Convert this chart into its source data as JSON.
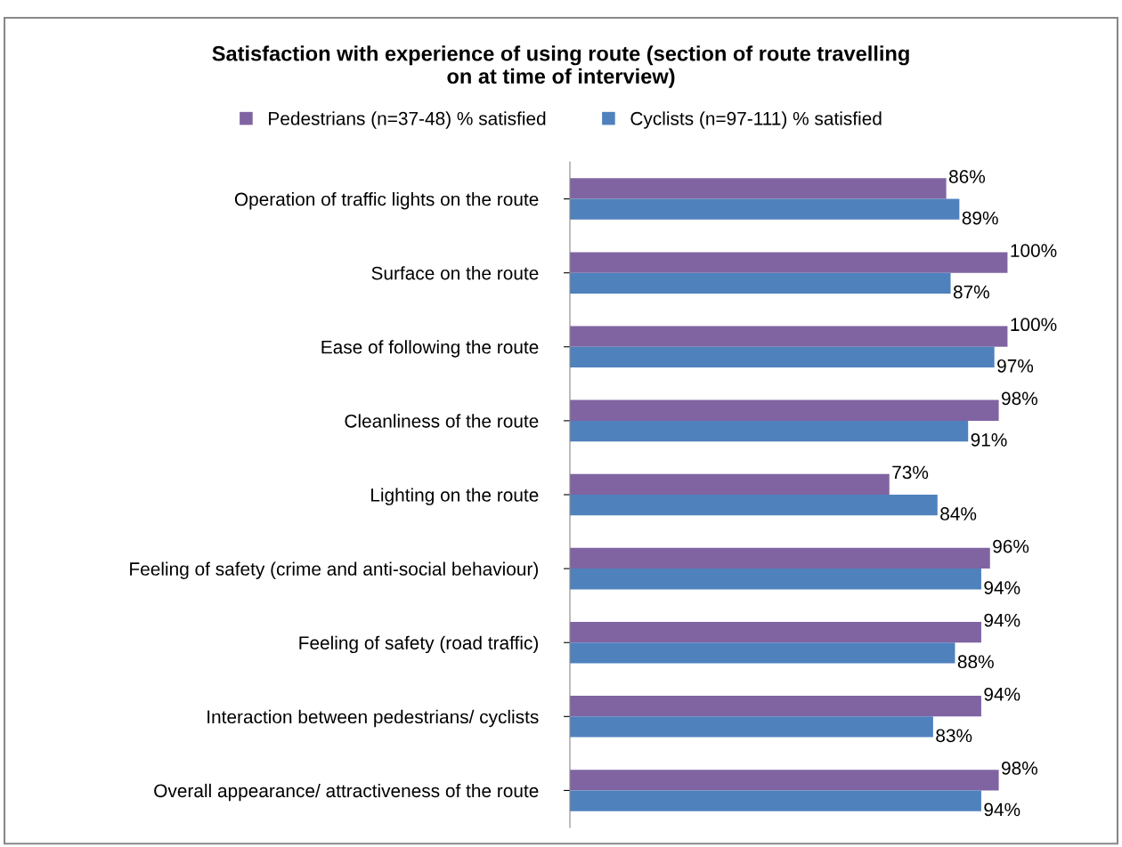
{
  "chart_data": {
    "type": "bar",
    "orientation": "horizontal",
    "title": "Satisfaction with experience of using route (section of route travelling\non at time of interview)",
    "categories": [
      "Operation of traffic lights on the route",
      "Surface on the route",
      "Ease of following the route",
      "Cleanliness of the route",
      "Lighting on the route",
      "Feeling of safety (crime and anti-social behaviour)",
      "Feeling of safety (road traffic)",
      "Interaction between pedestrians/ cyclists",
      "Overall appearance/ attractiveness of the route"
    ],
    "series": [
      {
        "name": "Pedestrians (n=37-48) % satisfied",
        "color": "#8064a2",
        "values": [
          86,
          100,
          100,
          98,
          73,
          96,
          94,
          94,
          98
        ],
        "value_labels": [
          "86%",
          "100%",
          "100%",
          "98%",
          "73%",
          "96%",
          "94%",
          "94%",
          "98%"
        ]
      },
      {
        "name": "Cyclists (n=97-111) % satisfied",
        "color": "#4f81bd",
        "values": [
          89,
          87,
          97,
          91,
          84,
          94,
          88,
          83,
          94
        ],
        "value_labels": [
          "89%",
          "87%",
          "97%",
          "91%",
          "84%",
          "94%",
          "88%",
          "83%",
          "94%"
        ]
      }
    ],
    "grid": false,
    "legend": "top",
    "tick_labels": "y"
  }
}
